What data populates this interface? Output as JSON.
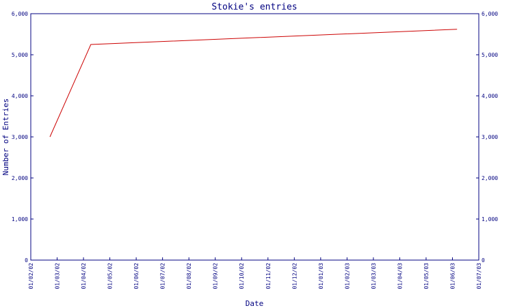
{
  "chart_data": {
    "type": "line",
    "title": "Stokie's entries",
    "xlabel": "Date",
    "ylabel": "Number of Entries",
    "x_ticks": [
      "01/02/02",
      "01/03/02",
      "01/04/02",
      "01/05/02",
      "01/06/02",
      "01/07/02",
      "01/08/02",
      "01/09/02",
      "01/10/02",
      "01/11/02",
      "01/12/02",
      "01/01/03",
      "01/02/03",
      "01/03/03",
      "01/04/03",
      "01/05/03",
      "01/06/03",
      "01/07/03"
    ],
    "y_ticks": [
      "0",
      "1,000",
      "2,000",
      "3,000",
      "4,000",
      "5,000",
      "6,000"
    ],
    "ylim": [
      0,
      6000
    ],
    "grid": false,
    "series": [
      {
        "x": [
          "2002-02-23",
          "2002-04-11",
          "2003-06-06"
        ],
        "values": [
          3000,
          5250,
          5620
        ]
      }
    ],
    "colors": {
      "axis": "#000080",
      "text": "#000080",
      "line": "#cc0000",
      "background": "#ffffff"
    }
  }
}
